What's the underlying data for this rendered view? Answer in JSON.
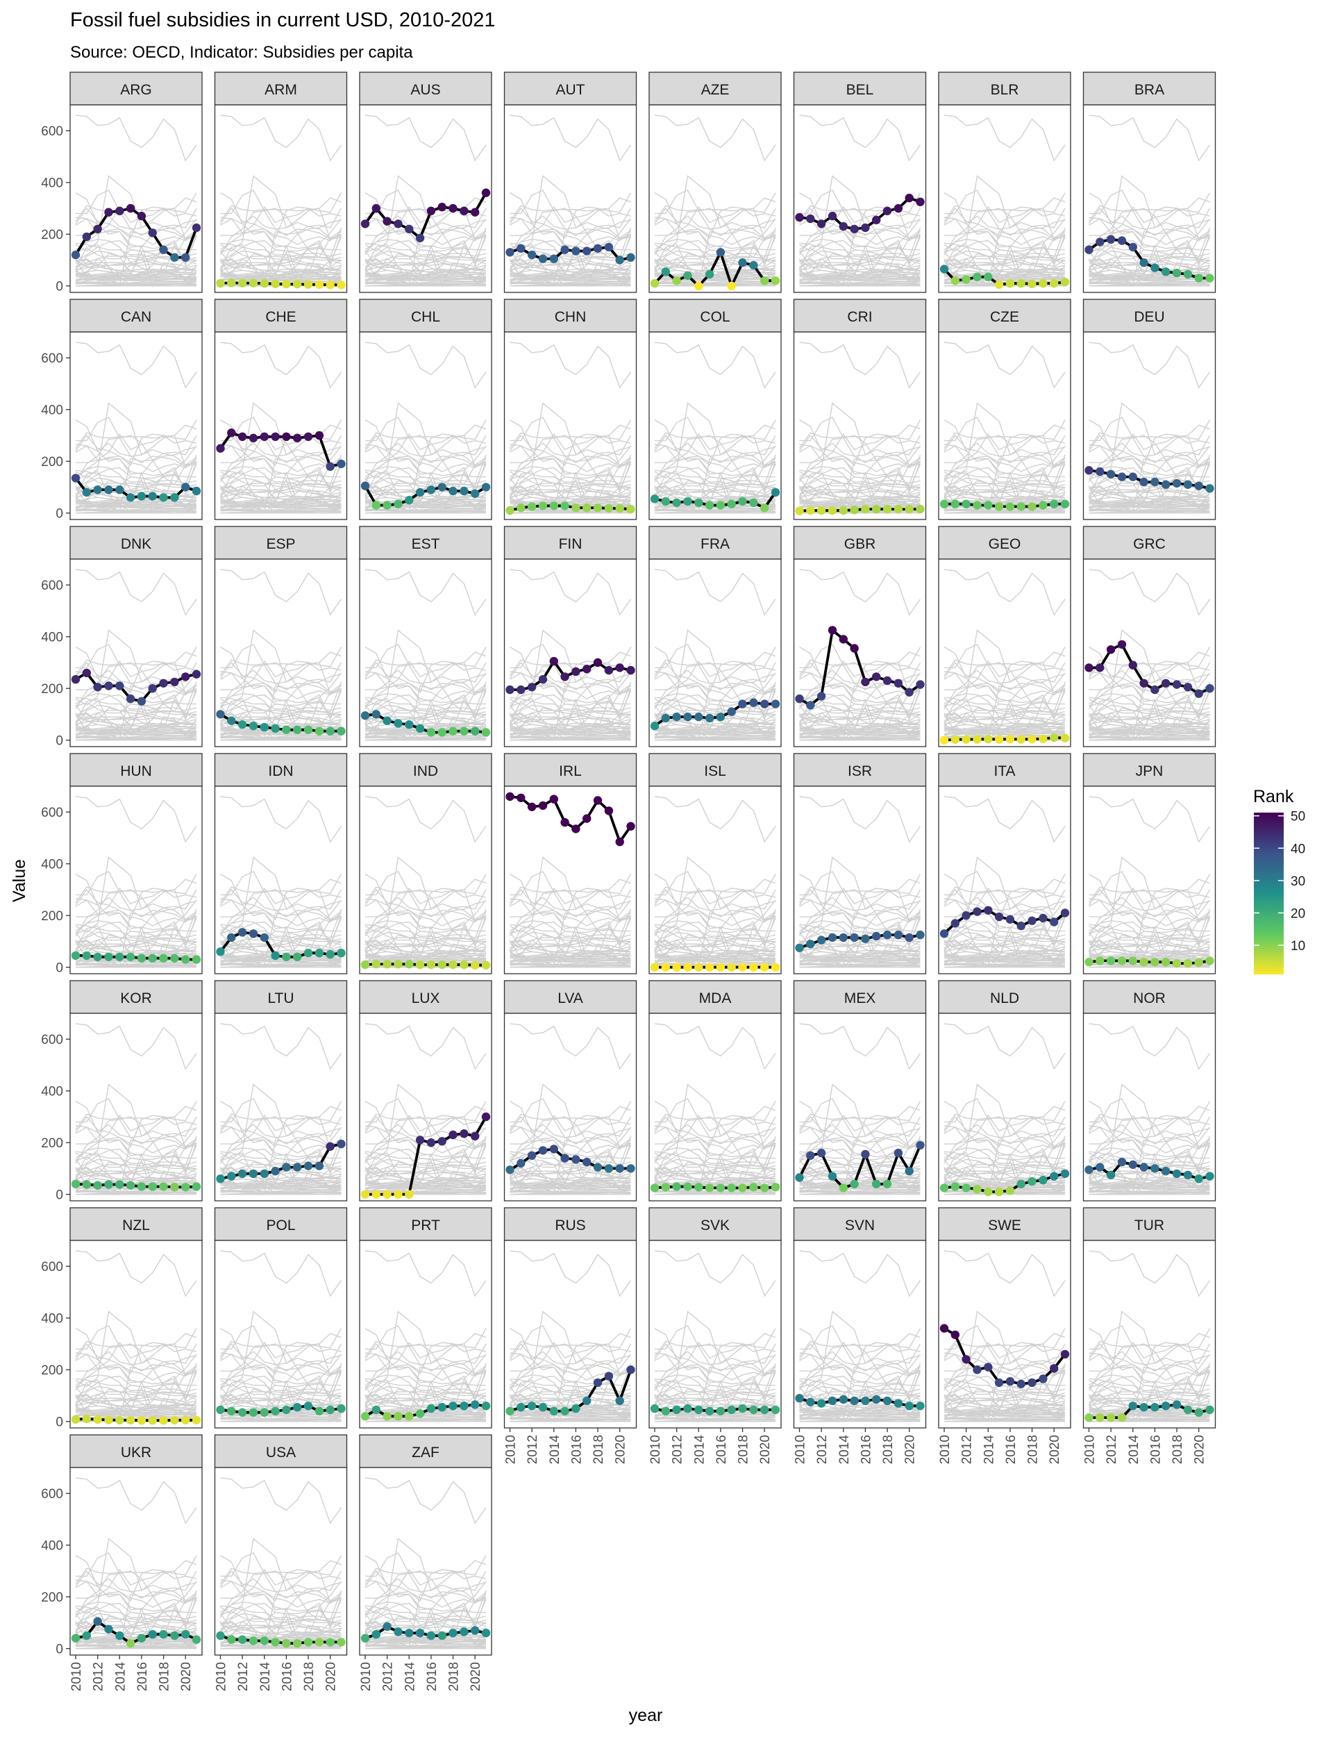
{
  "chart_data": {
    "type": "line",
    "title": "Fossil fuel subsidies in current USD, 2010-2021",
    "subtitle": "Source: OECD, Indicator: Subsidies per capita",
    "xlabel": "year",
    "ylabel": "Value",
    "x": [
      2010,
      2011,
      2012,
      2013,
      2014,
      2015,
      2016,
      2017,
      2018,
      2019,
      2020,
      2021
    ],
    "x_ticks": [
      "2010",
      "2012",
      "2014",
      "2016",
      "2018",
      "2020"
    ],
    "y_ticks": [
      "0",
      "200",
      "400",
      "600"
    ],
    "ylim": [
      -25,
      700
    ],
    "xlim": [
      2010,
      2021
    ],
    "grid": false,
    "facet": "country",
    "legend": {
      "title": "Rank",
      "position": "right",
      "ticks": [
        "10",
        "20",
        "30",
        "40",
        "50"
      ],
      "colors": [
        "#fde725",
        "#5ec962",
        "#21918c",
        "#3b528b",
        "#440154"
      ]
    },
    "highlight_line_color": "#000000",
    "background_line_color": "#d0d0d0",
    "series": [
      {
        "name": "ARG",
        "values": [
          120,
          190,
          220,
          285,
          290,
          300,
          270,
          205,
          140,
          110,
          110,
          225
        ]
      },
      {
        "name": "ARM",
        "values": [
          10,
          12,
          11,
          11,
          10,
          8,
          7,
          7,
          6,
          5,
          4,
          4
        ]
      },
      {
        "name": "AUS",
        "values": [
          240,
          300,
          250,
          240,
          220,
          185,
          290,
          305,
          300,
          290,
          285,
          360
        ]
      },
      {
        "name": "AUT",
        "values": [
          130,
          145,
          120,
          105,
          105,
          140,
          135,
          135,
          145,
          150,
          100,
          110
        ]
      },
      {
        "name": "AZE",
        "values": [
          10,
          55,
          20,
          40,
          0,
          45,
          130,
          0,
          90,
          80,
          20,
          20
        ]
      },
      {
        "name": "BEL",
        "values": [
          265,
          260,
          240,
          270,
          230,
          220,
          225,
          255,
          290,
          300,
          340,
          325
        ]
      },
      {
        "name": "BLR",
        "values": [
          65,
          20,
          25,
          35,
          35,
          5,
          10,
          10,
          8,
          10,
          10,
          15
        ]
      },
      {
        "name": "BRA",
        "values": [
          140,
          170,
          180,
          175,
          150,
          90,
          70,
          55,
          50,
          45,
          30,
          30
        ]
      },
      {
        "name": "CAN",
        "values": [
          135,
          80,
          90,
          90,
          90,
          60,
          65,
          65,
          60,
          60,
          100,
          85
        ]
      },
      {
        "name": "CHE",
        "values": [
          250,
          310,
          295,
          290,
          295,
          295,
          295,
          290,
          295,
          300,
          180,
          190
        ]
      },
      {
        "name": "CHL",
        "values": [
          105,
          30,
          30,
          35,
          50,
          80,
          90,
          100,
          85,
          85,
          75,
          100
        ]
      },
      {
        "name": "CHN",
        "values": [
          10,
          20,
          25,
          28,
          28,
          28,
          20,
          20,
          20,
          18,
          18,
          15
        ]
      },
      {
        "name": "COL",
        "values": [
          55,
          45,
          40,
          45,
          40,
          30,
          30,
          35,
          45,
          40,
          20,
          80
        ]
      },
      {
        "name": "CRI",
        "values": [
          8,
          10,
          10,
          10,
          10,
          12,
          15,
          15,
          15,
          15,
          15,
          15
        ]
      },
      {
        "name": "CZE",
        "values": [
          35,
          35,
          35,
          30,
          30,
          25,
          25,
          25,
          25,
          30,
          35,
          35
        ]
      },
      {
        "name": "DEU",
        "values": [
          165,
          160,
          150,
          140,
          140,
          120,
          120,
          110,
          115,
          110,
          105,
          95
        ]
      },
      {
        "name": "DNK",
        "values": [
          235,
          260,
          205,
          210,
          210,
          160,
          150,
          200,
          220,
          225,
          245,
          255
        ]
      },
      {
        "name": "ESP",
        "values": [
          100,
          75,
          60,
          55,
          50,
          45,
          40,
          40,
          40,
          35,
          35,
          35
        ]
      },
      {
        "name": "EST",
        "values": [
          95,
          100,
          75,
          65,
          60,
          45,
          30,
          30,
          35,
          35,
          35,
          30
        ]
      },
      {
        "name": "FIN",
        "values": [
          195,
          195,
          205,
          235,
          305,
          245,
          265,
          275,
          300,
          270,
          280,
          270
        ]
      },
      {
        "name": "FRA",
        "values": [
          55,
          85,
          90,
          90,
          90,
          85,
          90,
          110,
          140,
          145,
          140,
          140
        ]
      },
      {
        "name": "GBR",
        "values": [
          160,
          135,
          170,
          425,
          390,
          355,
          225,
          245,
          230,
          220,
          185,
          215
        ]
      },
      {
        "name": "GEO",
        "values": [
          0,
          2,
          3,
          3,
          4,
          3,
          4,
          3,
          4,
          5,
          10,
          8
        ]
      },
      {
        "name": "GRC",
        "values": [
          280,
          280,
          350,
          370,
          290,
          220,
          195,
          220,
          215,
          205,
          180,
          200
        ]
      },
      {
        "name": "HUN",
        "values": [
          45,
          45,
          40,
          40,
          40,
          40,
          35,
          35,
          35,
          35,
          30,
          30
        ]
      },
      {
        "name": "IDN",
        "values": [
          60,
          115,
          135,
          130,
          115,
          45,
          40,
          40,
          55,
          55,
          50,
          55
        ]
      },
      {
        "name": "IND",
        "values": [
          10,
          12,
          12,
          12,
          12,
          10,
          10,
          10,
          10,
          10,
          8,
          8
        ]
      },
      {
        "name": "IRL",
        "values": [
          660,
          655,
          620,
          625,
          650,
          560,
          535,
          575,
          645,
          605,
          485,
          545
        ]
      },
      {
        "name": "ISL",
        "values": [
          0,
          0,
          0,
          0,
          0,
          0,
          0,
          0,
          0,
          0,
          0,
          0
        ]
      },
      {
        "name": "ISR",
        "values": [
          75,
          90,
          105,
          115,
          115,
          115,
          110,
          120,
          125,
          125,
          115,
          125
        ]
      },
      {
        "name": "ITA",
        "values": [
          130,
          170,
          200,
          215,
          220,
          195,
          185,
          160,
          180,
          190,
          175,
          210
        ]
      },
      {
        "name": "JPN",
        "values": [
          20,
          25,
          25,
          25,
          25,
          20,
          20,
          20,
          15,
          15,
          18,
          25
        ]
      },
      {
        "name": "KOR",
        "values": [
          40,
          38,
          35,
          38,
          38,
          35,
          30,
          30,
          30,
          28,
          28,
          30
        ]
      },
      {
        "name": "LTU",
        "values": [
          60,
          70,
          80,
          80,
          80,
          90,
          105,
          105,
          110,
          110,
          185,
          195
        ]
      },
      {
        "name": "LUX",
        "values": [
          0,
          0,
          0,
          0,
          0,
          210,
          200,
          205,
          230,
          235,
          225,
          300
        ]
      },
      {
        "name": "LVA",
        "values": [
          95,
          120,
          150,
          170,
          175,
          140,
          135,
          125,
          105,
          100,
          100,
          100
        ]
      },
      {
        "name": "MDA",
        "values": [
          25,
          28,
          30,
          30,
          28,
          25,
          25,
          25,
          25,
          28,
          25,
          28
        ]
      },
      {
        "name": "MEX",
        "values": [
          65,
          150,
          160,
          70,
          25,
          40,
          155,
          40,
          40,
          160,
          90,
          190
        ]
      },
      {
        "name": "NLD",
        "values": [
          25,
          30,
          25,
          20,
          10,
          10,
          15,
          40,
          50,
          55,
          70,
          80
        ]
      },
      {
        "name": "NOR",
        "values": [
          95,
          105,
          75,
          125,
          115,
          105,
          100,
          90,
          80,
          75,
          60,
          70
        ]
      },
      {
        "name": "NZL",
        "values": [
          8,
          10,
          8,
          6,
          5,
          5,
          4,
          4,
          4,
          5,
          5,
          5
        ]
      },
      {
        "name": "POL",
        "values": [
          45,
          40,
          35,
          35,
          35,
          40,
          45,
          55,
          60,
          40,
          45,
          50
        ]
      },
      {
        "name": "PRT",
        "values": [
          20,
          45,
          20,
          20,
          20,
          30,
          50,
          55,
          60,
          60,
          65,
          60
        ]
      },
      {
        "name": "RUS",
        "values": [
          40,
          55,
          60,
          55,
          40,
          40,
          50,
          80,
          150,
          175,
          80,
          200
        ]
      },
      {
        "name": "SVK",
        "values": [
          50,
          40,
          45,
          50,
          45,
          40,
          40,
          45,
          50,
          45,
          45,
          45
        ]
      },
      {
        "name": "SVN",
        "values": [
          90,
          75,
          70,
          80,
          85,
          80,
          80,
          85,
          80,
          70,
          60,
          60
        ]
      },
      {
        "name": "SWE",
        "values": [
          360,
          335,
          240,
          200,
          210,
          150,
          155,
          145,
          150,
          165,
          205,
          260
        ]
      },
      {
        "name": "TUR",
        "values": [
          15,
          15,
          15,
          15,
          60,
          55,
          55,
          60,
          65,
          45,
          35,
          45
        ]
      },
      {
        "name": "UKR",
        "values": [
          40,
          50,
          105,
          75,
          50,
          20,
          40,
          55,
          55,
          50,
          55,
          35
        ]
      },
      {
        "name": "USA",
        "values": [
          50,
          35,
          35,
          30,
          30,
          25,
          20,
          20,
          25,
          25,
          25,
          25
        ]
      },
      {
        "name": "ZAF",
        "values": [
          40,
          55,
          85,
          65,
          60,
          60,
          50,
          50,
          60,
          65,
          70,
          60
        ]
      }
    ]
  }
}
